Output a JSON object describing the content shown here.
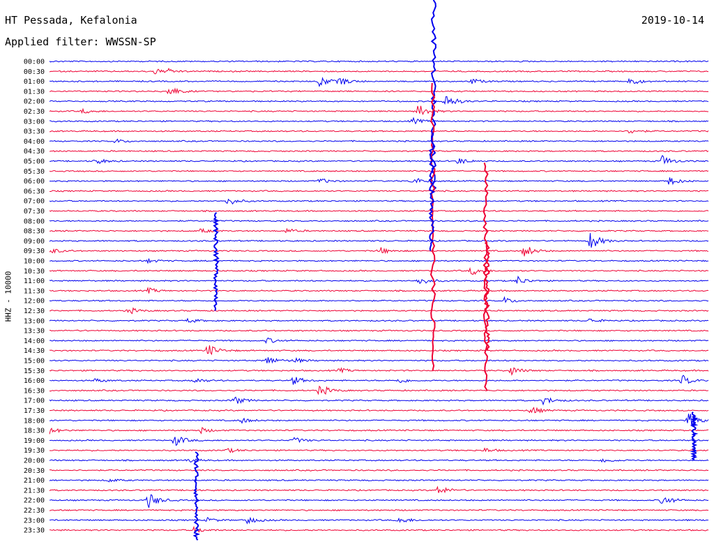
{
  "header": {
    "station": "HT Pessada, Kefalonia",
    "filter": "Applied filter: WWSSN-SP",
    "date": "2019-10-14"
  },
  "colors": {
    "blue": "#0000ee",
    "red": "#ee0033"
  },
  "chart_data": {
    "type": "line",
    "ylabel": "HHZ - 10000",
    "ytick_labels": [
      "00:00",
      "00:30",
      "01:00",
      "01:30",
      "02:00",
      "02:30",
      "03:00",
      "03:30",
      "04:00",
      "04:30",
      "05:00",
      "05:30",
      "06:00",
      "06:30",
      "07:00",
      "07:30",
      "08:00",
      "08:30",
      "09:00",
      "09:30",
      "10:00",
      "10:30",
      "11:00",
      "11:30",
      "12:00",
      "12:30",
      "13:00",
      "13:30",
      "14:00",
      "14:30",
      "15:00",
      "15:30",
      "16:00",
      "16:30",
      "17:00",
      "17:30",
      "18:00",
      "18:30",
      "19:00",
      "19:30",
      "20:00",
      "20:30",
      "21:00",
      "21:30",
      "22:00",
      "22:30",
      "23:00",
      "23:30"
    ],
    "series_colors": [
      "blue",
      "red"
    ],
    "events": [
      [
        1,
        0.16,
        1.0
      ],
      [
        1,
        0.18,
        0.6
      ],
      [
        2,
        0.41,
        2.0
      ],
      [
        2,
        0.44,
        1.6
      ],
      [
        2,
        0.64,
        1.1
      ],
      [
        2,
        0.88,
        1.6
      ],
      [
        3,
        0.18,
        2.2
      ],
      [
        4,
        0.6,
        3.0
      ],
      [
        5,
        0.05,
        0.8
      ],
      [
        5,
        0.56,
        2.5
      ],
      [
        6,
        0.55,
        1.2
      ],
      [
        7,
        0.88,
        1.0
      ],
      [
        8,
        0.1,
        0.8
      ],
      [
        10,
        0.07,
        1.2
      ],
      [
        10,
        0.62,
        1.2
      ],
      [
        10,
        0.93,
        2.0
      ],
      [
        12,
        0.41,
        1.0
      ],
      [
        12,
        0.55,
        1.6
      ],
      [
        12,
        0.94,
        1.6
      ],
      [
        14,
        0.27,
        1.6
      ],
      [
        17,
        0.23,
        0.8
      ],
      [
        17,
        0.36,
        0.8
      ],
      [
        18,
        0.82,
        3.5
      ],
      [
        19,
        0.0,
        1.2
      ],
      [
        19,
        0.5,
        1.4
      ],
      [
        19,
        0.72,
        2.5
      ],
      [
        20,
        0.15,
        0.8
      ],
      [
        21,
        0.64,
        1.6
      ],
      [
        22,
        0.56,
        1.6
      ],
      [
        22,
        0.71,
        1.6
      ],
      [
        23,
        0.15,
        1.0
      ],
      [
        24,
        0.69,
        1.2
      ],
      [
        25,
        0.12,
        1.2
      ],
      [
        26,
        0.21,
        0.8
      ],
      [
        26,
        0.82,
        0.8
      ],
      [
        28,
        0.33,
        1.0
      ],
      [
        29,
        0.24,
        2.4
      ],
      [
        30,
        0.33,
        1.6
      ],
      [
        30,
        0.37,
        1.0
      ],
      [
        31,
        0.44,
        0.8
      ],
      [
        31,
        0.7,
        1.6
      ],
      [
        32,
        0.07,
        0.8
      ],
      [
        32,
        0.22,
        1.0
      ],
      [
        32,
        0.37,
        1.6
      ],
      [
        32,
        0.53,
        1.0
      ],
      [
        32,
        0.96,
        2.0
      ],
      [
        33,
        0.41,
        2.2
      ],
      [
        34,
        0.28,
        1.6
      ],
      [
        34,
        0.75,
        1.6
      ],
      [
        35,
        0.73,
        1.6
      ],
      [
        36,
        0.29,
        1.0
      ],
      [
        36,
        0.97,
        3.0
      ],
      [
        37,
        0.0,
        1.2
      ],
      [
        37,
        0.23,
        1.0
      ],
      [
        38,
        0.19,
        2.2
      ],
      [
        38,
        0.37,
        1.2
      ],
      [
        39,
        0.27,
        0.8
      ],
      [
        39,
        0.66,
        0.8
      ],
      [
        40,
        0.21,
        0.8
      ],
      [
        40,
        0.84,
        1.0
      ],
      [
        42,
        0.09,
        0.6
      ],
      [
        43,
        0.59,
        1.8
      ],
      [
        44,
        0.15,
        3.0
      ],
      [
        44,
        0.93,
        2.0
      ],
      [
        46,
        0.24,
        0.8
      ],
      [
        46,
        0.3,
        1.4
      ],
      [
        46,
        0.53,
        1.4
      ],
      [
        47,
        0.22,
        1.2
      ]
    ],
    "spikes": [
      {
        "row": 0,
        "x": 0.583,
        "rows_down": 13
      },
      {
        "row": 3,
        "x": 0.582,
        "rows_down": 28
      },
      {
        "row": 8,
        "x": 0.58,
        "rows_down": 11
      },
      {
        "row": 11,
        "x": 0.662,
        "rows_down": 22
      },
      {
        "row": 16,
        "x": 0.253,
        "rows_down": 9
      },
      {
        "row": 19,
        "x": 0.664,
        "rows_down": 10
      },
      {
        "row": 36,
        "x": 0.978,
        "rows_down": 4
      },
      {
        "row": 40,
        "x": 0.223,
        "rows_down": 8
      }
    ]
  }
}
